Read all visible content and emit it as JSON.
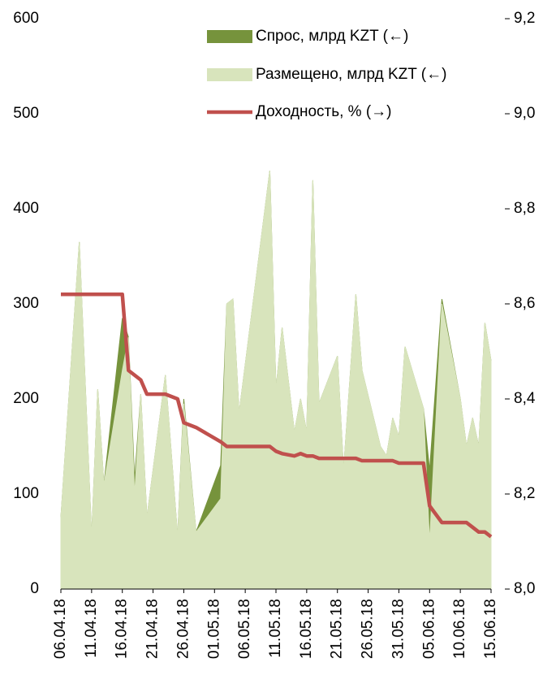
{
  "chart_data": {
    "type": "area",
    "x": [
      "06.04.18",
      "09.04.18",
      "11.04.18",
      "12.04.18",
      "13.04.18",
      "16.04.18",
      "17.04.18",
      "18.04.18",
      "19.04.18",
      "20.04.18",
      "23.04.18",
      "25.04.18",
      "26.04.18",
      "28.04.18",
      "02.05.18",
      "03.05.18",
      "04.05.18",
      "05.05.18",
      "10.05.18",
      "11.05.18",
      "12.05.18",
      "14.05.18",
      "15.05.18",
      "16.05.18",
      "17.05.18",
      "18.05.18",
      "21.05.18",
      "22.05.18",
      "24.05.18",
      "25.05.18",
      "28.05.18",
      "29.05.18",
      "30.05.18",
      "31.05.18",
      "01.06.18",
      "04.06.18",
      "05.06.18",
      "07.06.18",
      "10.06.18",
      "11.06.18",
      "12.06.18",
      "13.06.18",
      "14.06.18",
      "15.06.18"
    ],
    "series": [
      {
        "name": "Спрос, млрд KZT (←)",
        "color": "#76933c",
        "kind": "area",
        "values": [
          75,
          365,
          55,
          210,
          110,
          285,
          265,
          115,
          205,
          75,
          225,
          55,
          200,
          60,
          130,
          300,
          305,
          185,
          440,
          210,
          275,
          165,
          200,
          165,
          430,
          195,
          245,
          125,
          310,
          230,
          150,
          140,
          180,
          160,
          255,
          190,
          125,
          305,
          200,
          150,
          180,
          150,
          280,
          240
        ]
      },
      {
        "name": "Размещено, млрд KZT (←)",
        "color": "#d8e4bc",
        "kind": "area",
        "values": [
          75,
          365,
          55,
          210,
          110,
          230,
          265,
          100,
          205,
          75,
          225,
          55,
          195,
          60,
          95,
          300,
          305,
          185,
          440,
          210,
          275,
          165,
          200,
          165,
          430,
          195,
          245,
          125,
          310,
          230,
          150,
          140,
          180,
          160,
          255,
          190,
          50,
          300,
          200,
          150,
          180,
          150,
          280,
          240
        ]
      },
      {
        "name": "Доходность, % (→)",
        "color": "#c0504d",
        "kind": "line",
        "axis": "y2",
        "values": [
          8.62,
          8.62,
          8.62,
          8.62,
          8.62,
          8.62,
          8.46,
          8.45,
          8.44,
          8.41,
          8.41,
          8.4,
          8.35,
          8.34,
          8.31,
          8.3,
          8.3,
          8.3,
          8.3,
          8.29,
          8.285,
          8.28,
          8.285,
          8.28,
          8.28,
          8.275,
          8.275,
          8.275,
          8.275,
          8.27,
          8.27,
          8.27,
          8.27,
          8.265,
          8.265,
          8.265,
          8.175,
          8.14,
          8.14,
          8.14,
          8.13,
          8.12,
          8.12,
          8.11
        ]
      }
    ],
    "xticks": [
      "06.04.18",
      "11.04.18",
      "16.04.18",
      "21.04.18",
      "26.04.18",
      "01.05.18",
      "06.05.18",
      "11.05.18",
      "16.05.18",
      "21.05.18",
      "26.05.18",
      "31.05.18",
      "05.06.18",
      "10.06.18",
      "15.06.18"
    ],
    "ylim": [
      0,
      600
    ],
    "yticks": [
      0,
      100,
      200,
      300,
      400,
      500,
      600
    ],
    "y2lim": [
      8.0,
      9.2
    ],
    "y2ticks": [
      {
        "value": 8.0,
        "label": "8,0"
      },
      {
        "value": 8.2,
        "label": "8,2"
      },
      {
        "value": 8.4,
        "label": "8,4"
      },
      {
        "value": 8.6,
        "label": "8,6"
      },
      {
        "value": 8.8,
        "label": "8,8"
      },
      {
        "value": 9.0,
        "label": "9,0"
      },
      {
        "value": 9.2,
        "label": "9,2"
      }
    ],
    "legend": "top"
  }
}
